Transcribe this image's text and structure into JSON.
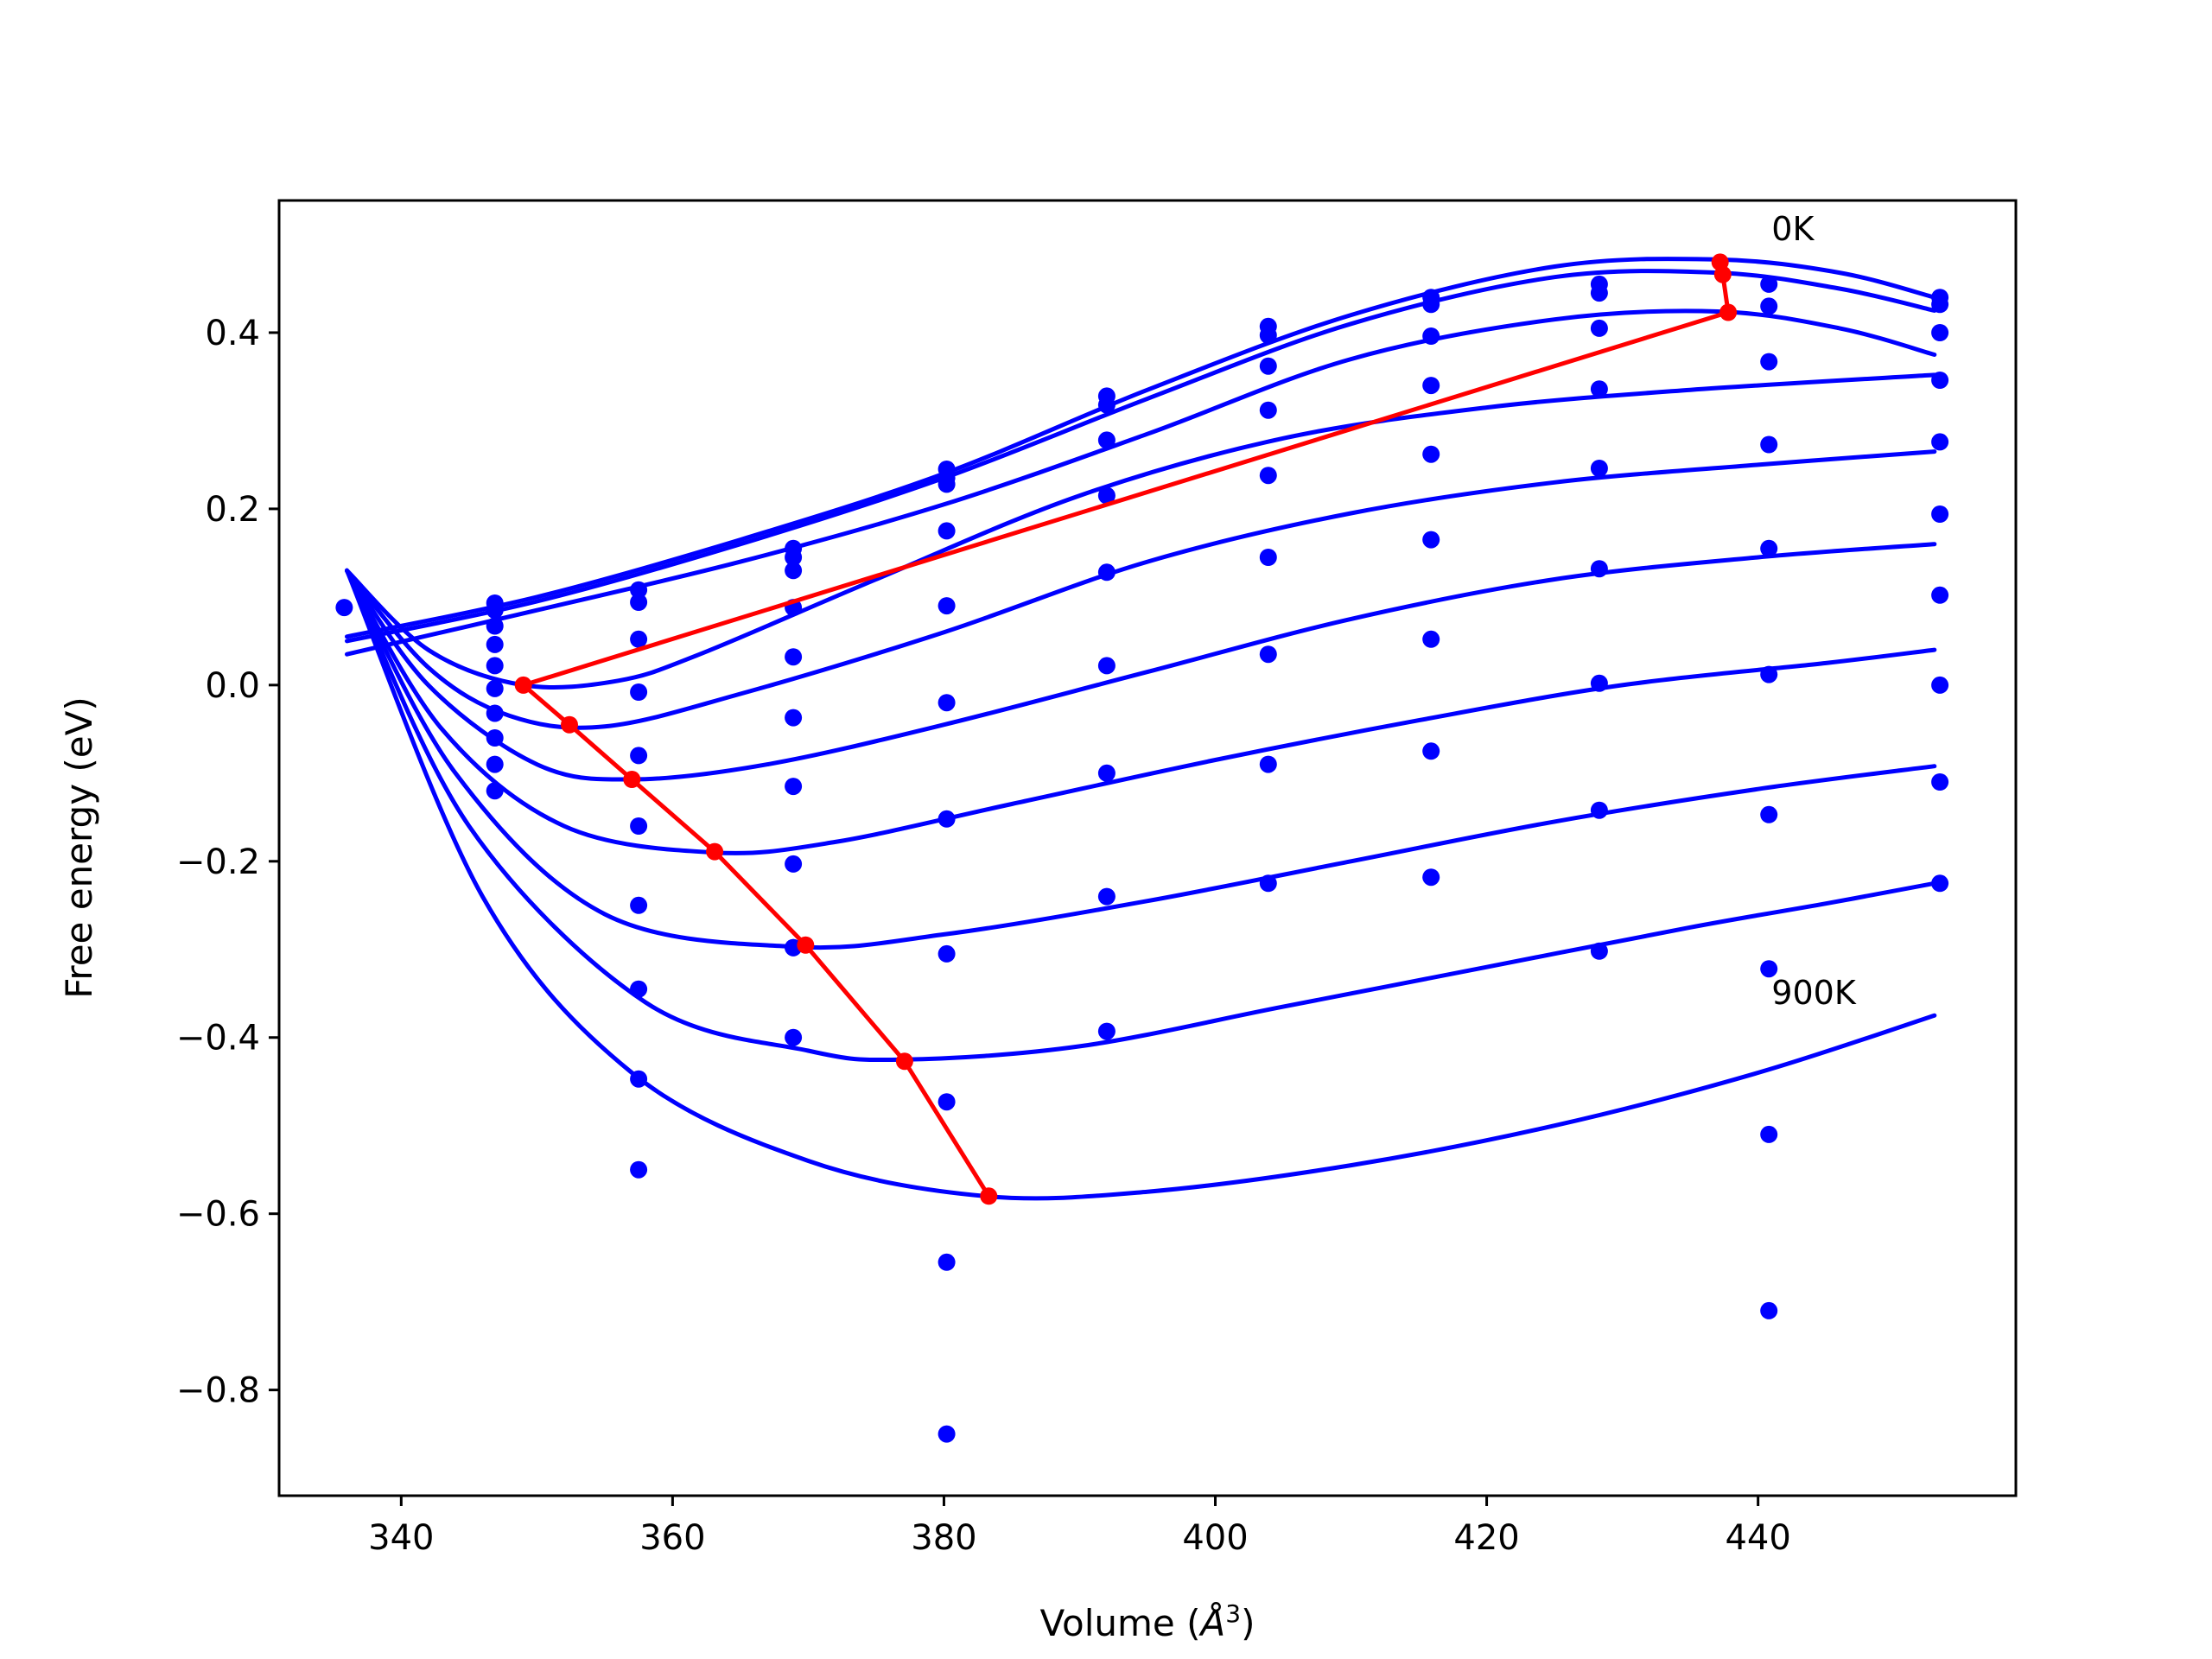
{
  "chart_data": {
    "type": "scatter",
    "title": "",
    "xlabel": "Volume",
    "xlabel_unit": "Å",
    "xlabel_unit_exp": "3",
    "ylabel": "Free energy (eV)",
    "xlim": [
      331,
      459
    ],
    "ylim": [
      -0.92,
      0.55
    ],
    "xticks": [
      340,
      360,
      380,
      400,
      420,
      440
    ],
    "yticks": [
      -0.8,
      -0.6,
      -0.4,
      -0.2,
      0.0,
      0.2,
      0.4
    ],
    "xtick_labels": [
      "340",
      "360",
      "380",
      "400",
      "420",
      "440"
    ],
    "ytick_labels": [
      "−0.8",
      "−0.6",
      "−0.4",
      "−0.2",
      "0.0",
      "0.2",
      "0.4"
    ],
    "grid": false,
    "annotations": [
      {
        "text": "0K",
        "x": 441,
        "y": 0.505
      },
      {
        "text": "900K",
        "x": 441,
        "y": -0.362
      }
    ],
    "colors": {
      "curves": "#0000ff",
      "points": "#0000ff",
      "minimum_path": "#ff0000"
    },
    "fit_curves": [
      {
        "points": [
          [
            336,
            0.055
          ],
          [
            350,
            0.1
          ],
          [
            365,
            0.165
          ],
          [
            380,
            0.24
          ],
          [
            395,
            0.335
          ],
          [
            410,
            0.42
          ],
          [
            425,
            0.475
          ],
          [
            437,
            0.483
          ],
          [
            446,
            0.468
          ],
          [
            453,
            0.44
          ]
        ]
      },
      {
        "points": [
          [
            336,
            0.05
          ],
          [
            350,
            0.095
          ],
          [
            365,
            0.16
          ],
          [
            380,
            0.235
          ],
          [
            395,
            0.325
          ],
          [
            410,
            0.41
          ],
          [
            425,
            0.463
          ],
          [
            437,
            0.468
          ],
          [
            446,
            0.45
          ],
          [
            453,
            0.425
          ]
        ]
      },
      {
        "points": [
          [
            336,
            0.035
          ],
          [
            350,
            0.085
          ],
          [
            365,
            0.14
          ],
          [
            380,
            0.205
          ],
          [
            395,
            0.285
          ],
          [
            410,
            0.37
          ],
          [
            425,
            0.415
          ],
          [
            437,
            0.424
          ],
          [
            446,
            0.405
          ],
          [
            453,
            0.375
          ]
        ]
      },
      {
        "points": [
          [
            336,
            0.13
          ],
          [
            342,
            0.04
          ],
          [
            349,
            0.0
          ],
          [
            356,
            0.005
          ],
          [
            362,
            0.035
          ],
          [
            375,
            0.12
          ],
          [
            390,
            0.215
          ],
          [
            405,
            0.28
          ],
          [
            420,
            0.315
          ],
          [
            435,
            0.335
          ],
          [
            453,
            0.352
          ]
        ]
      },
      {
        "points": [
          [
            336,
            0.13
          ],
          [
            342,
            0.02
          ],
          [
            348,
            -0.035
          ],
          [
            355,
            -0.047
          ],
          [
            365,
            -0.01
          ],
          [
            380,
            0.06
          ],
          [
            395,
            0.14
          ],
          [
            410,
            0.195
          ],
          [
            425,
            0.23
          ],
          [
            440,
            0.25
          ],
          [
            453,
            0.265
          ]
        ]
      },
      {
        "points": [
          [
            336,
            0.13
          ],
          [
            342,
            0.0
          ],
          [
            350,
            -0.09
          ],
          [
            357,
            -0.107
          ],
          [
            367,
            -0.09
          ],
          [
            380,
            -0.045
          ],
          [
            395,
            0.015
          ],
          [
            410,
            0.075
          ],
          [
            425,
            0.12
          ],
          [
            440,
            0.145
          ],
          [
            453,
            0.16
          ]
        ]
      },
      {
        "points": [
          [
            336,
            0.13
          ],
          [
            343,
            -0.05
          ],
          [
            352,
            -0.16
          ],
          [
            363,
            -0.19
          ],
          [
            372,
            -0.178
          ],
          [
            385,
            -0.135
          ],
          [
            400,
            -0.085
          ],
          [
            415,
            -0.04
          ],
          [
            430,
            0.0
          ],
          [
            445,
            0.025
          ],
          [
            453,
            0.04
          ]
        ]
      },
      {
        "points": [
          [
            336,
            0.13
          ],
          [
            344,
            -0.1
          ],
          [
            355,
            -0.26
          ],
          [
            369,
            -0.297
          ],
          [
            380,
            -0.283
          ],
          [
            395,
            -0.245
          ],
          [
            410,
            -0.2
          ],
          [
            425,
            -0.155
          ],
          [
            440,
            -0.118
          ],
          [
            453,
            -0.092
          ]
        ]
      },
      {
        "points": [
          [
            336,
            0.13
          ],
          [
            345,
            -0.16
          ],
          [
            358,
            -0.36
          ],
          [
            370,
            -0.415
          ],
          [
            377,
            -0.425
          ],
          [
            390,
            -0.41
          ],
          [
            405,
            -0.365
          ],
          [
            420,
            -0.32
          ],
          [
            435,
            -0.275
          ],
          [
            445,
            -0.248
          ],
          [
            453,
            -0.225
          ]
        ]
      },
      {
        "points": [
          [
            336,
            0.13
          ],
          [
            346,
            -0.24
          ],
          [
            357,
            -0.44
          ],
          [
            370,
            -0.54
          ],
          [
            383,
            -0.58
          ],
          [
            395,
            -0.575
          ],
          [
            410,
            -0.545
          ],
          [
            425,
            -0.5
          ],
          [
            440,
            -0.44
          ],
          [
            453,
            -0.375
          ]
        ]
      }
    ],
    "data_points": {
      "x": [
        335.8,
        346.9,
        346.9,
        346.9,
        346.9,
        346.9,
        346.9,
        346.9,
        346.9,
        346.9,
        346.9,
        357.5,
        357.5,
        357.5,
        357.5,
        357.5,
        357.5,
        357.5,
        357.5,
        357.5,
        357.5,
        368.9,
        368.9,
        368.9,
        368.9,
        368.9,
        368.9,
        368.9,
        368.9,
        368.9,
        368.9,
        380.2,
        380.2,
        380.2,
        380.2,
        380.2,
        380.2,
        380.2,
        380.2,
        380.2,
        380.2,
        392.0,
        392.0,
        392.0,
        392.0,
        392.0,
        392.0,
        392.0,
        392.0,
        392.0,
        403.9,
        403.9,
        403.9,
        403.9,
        403.9,
        403.9,
        403.9,
        403.9,
        403.9,
        415.9,
        415.9,
        415.9,
        415.9,
        415.9,
        415.9,
        415.9,
        415.9,
        415.9,
        428.3,
        428.3,
        428.3,
        428.3,
        428.3,
        428.3,
        428.3,
        428.3,
        428.3,
        440.8,
        440.8,
        440.8,
        440.8,
        440.8,
        440.8,
        440.8,
        440.8,
        440.8,
        440.8,
        453.4,
        453.4,
        453.4,
        453.4,
        453.4,
        453.4,
        453.4,
        453.4,
        453.4,
        453.4
      ],
      "y": [
        0.088,
        0.093,
        0.085,
        0.067,
        0.046,
        0.022,
        -0.004,
        -0.032,
        -0.06,
        -0.09,
        -0.12,
        0.108,
        0.094,
        0.052,
        -0.008,
        -0.08,
        -0.16,
        -0.25,
        -0.345,
        -0.447,
        -0.55,
        0.155,
        0.145,
        0.13,
        0.088,
        0.032,
        -0.037,
        -0.115,
        -0.203,
        -0.298,
        -0.4,
        0.245,
        0.235,
        0.228,
        0.175,
        0.09,
        -0.02,
        -0.152,
        -0.305,
        -0.473,
        -0.655,
        0.328,
        0.318,
        0.278,
        0.215,
        0.128,
        0.022,
        -0.1,
        -0.24,
        -0.393,
        0.407,
        0.397,
        0.362,
        0.312,
        0.238,
        0.145,
        0.035,
        -0.09,
        -0.225,
        0.44,
        0.432,
        0.396,
        0.34,
        0.262,
        0.165,
        0.052,
        -0.075,
        -0.218,
        0.455,
        0.445,
        0.405,
        0.336,
        0.246,
        0.132,
        0.002,
        -0.142,
        -0.302,
        0.455,
        0.43,
        0.367,
        0.273,
        0.155,
        0.012,
        -0.147,
        -0.322,
        -0.51,
        -0.71,
        0.44,
        0.432,
        0.4,
        0.346,
        0.276,
        0.194,
        0.102,
        0.0,
        -0.11,
        -0.225
      ]
    },
    "extra_points": [
      {
        "x": 368.9,
        "y": -0.298
      },
      {
        "x": 380.2,
        "y": -0.85
      }
    ],
    "minimum_path": {
      "x": [
        437.2,
        437.4,
        437.8,
        349.0,
        352.4,
        357.0,
        363.1,
        369.8,
        377.1,
        383.3
      ],
      "y": [
        0.48,
        0.466,
        0.423,
        0.0,
        -0.045,
        -0.107,
        -0.189,
        -0.295,
        -0.427,
        -0.58
      ]
    }
  }
}
